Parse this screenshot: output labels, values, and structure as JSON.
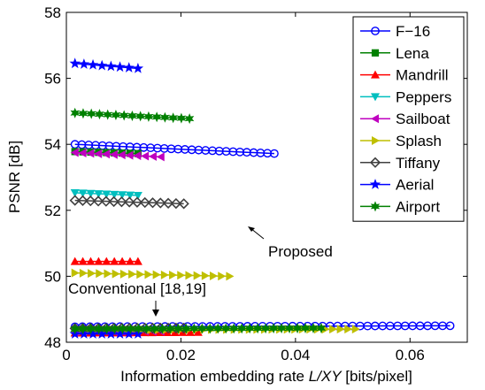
{
  "chart_data": {
    "type": "scatter",
    "xlabel_pre": "Information embedding rate ",
    "xlabel_italic": "L/XY",
    "xlabel_post": " [bits/pixel]",
    "ylabel": "PSNR [dB]",
    "xlim": [
      0,
      0.07
    ],
    "ylim": [
      48,
      58
    ],
    "xticks": [
      0,
      0.02,
      0.04,
      0.06
    ],
    "xtick_labels": [
      "0",
      "0.02",
      "0.04",
      "0.06"
    ],
    "yticks": [
      48,
      50,
      52,
      54,
      56,
      58
    ],
    "ytick_labels": [
      "48",
      "50",
      "52",
      "54",
      "56",
      "58"
    ],
    "legend_position": "top-right",
    "annotations": {
      "proposed": "Proposed",
      "conventional": "Conventional [18,19]"
    },
    "series": [
      {
        "name": "F−16",
        "color": "#0000ff",
        "marker": "circle",
        "proposed": {
          "x_start": 0.0015,
          "x_end": 0.0363,
          "y_start": 54.0,
          "y_end": 53.72,
          "count": 30
        },
        "conventional": {
          "x_start": 0.0015,
          "x_end": 0.067,
          "y_start": 48.47,
          "y_end": 48.5,
          "count": 51
        }
      },
      {
        "name": "Lena",
        "color": "#008000",
        "marker": "square",
        "proposed": {
          "x_start": 0.0015,
          "x_end": 0.0125,
          "y_start": 53.78,
          "y_end": 53.72,
          "count": 9
        },
        "conventional": {
          "x_start": 0.0015,
          "x_end": 0.0125,
          "y_start": 48.38,
          "y_end": 48.38,
          "count": 9
        }
      },
      {
        "name": "Mandrill",
        "color": "#ff0000",
        "marker": "triangle-up",
        "proposed": {
          "x_start": 0.0015,
          "x_end": 0.0125,
          "y_start": 50.45,
          "y_end": 50.45,
          "count": 9
        },
        "conventional": {
          "x_start": 0.0015,
          "x_end": 0.023,
          "y_start": 48.28,
          "y_end": 48.3,
          "count": 17
        }
      },
      {
        "name": "Peppers",
        "color": "#00bfbf",
        "marker": "triangle-down",
        "proposed": {
          "x_start": 0.0015,
          "x_end": 0.0125,
          "y_start": 52.53,
          "y_end": 52.45,
          "count": 9
        },
        "conventional": {
          "x_start": 0.0015,
          "x_end": 0.0125,
          "y_start": 48.35,
          "y_end": 48.35,
          "count": 9
        }
      },
      {
        "name": "Sailboat",
        "color": "#bf00bf",
        "marker": "triangle-left",
        "proposed": {
          "x_start": 0.0015,
          "x_end": 0.0165,
          "y_start": 53.75,
          "y_end": 53.62,
          "count": 12
        },
        "conventional": {
          "x_start": 0.0015,
          "x_end": 0.0165,
          "y_start": 48.32,
          "y_end": 48.33,
          "count": 12
        }
      },
      {
        "name": "Splash",
        "color": "#bfbf00",
        "marker": "triangle-right",
        "proposed": {
          "x_start": 0.0015,
          "x_end": 0.0285,
          "y_start": 50.1,
          "y_end": 50.0,
          "count": 20
        },
        "conventional": {
          "x_start": 0.0015,
          "x_end": 0.0505,
          "y_start": 48.37,
          "y_end": 48.4,
          "count": 38
        }
      },
      {
        "name": "Tiffany",
        "color": "#404040",
        "marker": "diamond",
        "proposed": {
          "x_start": 0.0015,
          "x_end": 0.0205,
          "y_start": 52.3,
          "y_end": 52.2,
          "count": 15
        },
        "conventional": {
          "x_start": 0.0015,
          "x_end": 0.0205,
          "y_start": 48.42,
          "y_end": 48.43,
          "count": 15
        }
      },
      {
        "name": "Aerial",
        "color": "#0000ff",
        "marker": "star",
        "proposed": {
          "x_start": 0.0015,
          "x_end": 0.0125,
          "y_start": 56.45,
          "y_end": 56.3,
          "count": 8
        },
        "conventional": {
          "x_start": 0.0015,
          "x_end": 0.0125,
          "y_start": 48.25,
          "y_end": 48.25,
          "count": 8
        }
      },
      {
        "name": "Airport",
        "color": "#008000",
        "marker": "hexagram",
        "proposed": {
          "x_start": 0.0015,
          "x_end": 0.0215,
          "y_start": 54.95,
          "y_end": 54.78,
          "count": 15
        },
        "conventional": {
          "x_start": 0.0015,
          "x_end": 0.0445,
          "y_start": 48.4,
          "y_end": 48.43,
          "count": 32
        }
      }
    ]
  }
}
